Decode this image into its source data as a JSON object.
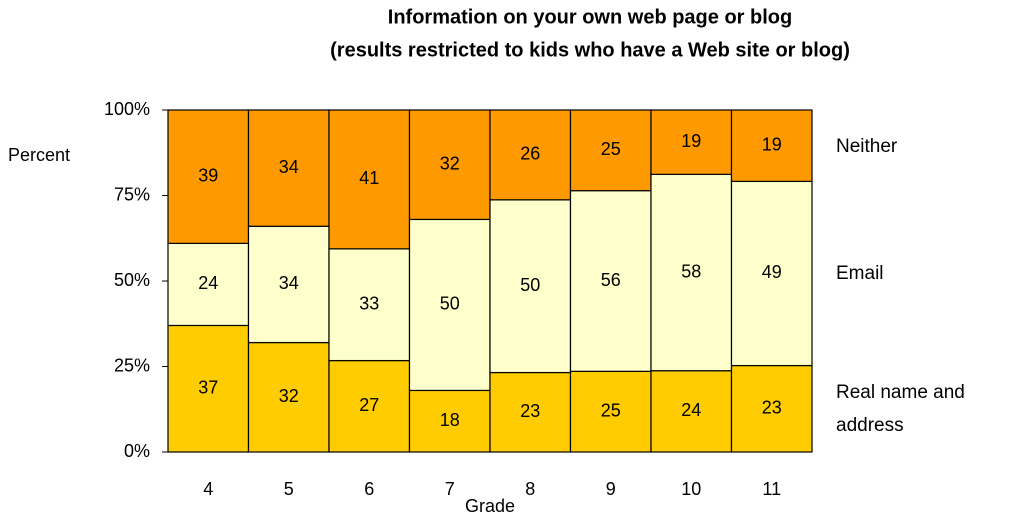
{
  "chart_data": {
    "type": "stacked_bar",
    "stack": "percent",
    "title": "Information on your own web page or blog",
    "subtitle": "(results restricted to kids who have a Web site or blog)",
    "x_label": "Grade",
    "y_label": "Percent",
    "categories": [
      "4",
      "5",
      "6",
      "7",
      "8",
      "9",
      "10",
      "11"
    ],
    "series": [
      {
        "name": "Real name and address",
        "color": "#ffcc00",
        "values": [
          37,
          32,
          27,
          18,
          23,
          25,
          24,
          23
        ]
      },
      {
        "name": "Email",
        "color": "#ffffcc",
        "values": [
          24,
          34,
          33,
          50,
          50,
          56,
          58,
          49
        ]
      },
      {
        "name": "Neither",
        "color": "#ff9900",
        "values": [
          39,
          34,
          41,
          32,
          26,
          25,
          19,
          19
        ]
      }
    ],
    "ylim": [
      0,
      100
    ],
    "yticks": [
      {
        "value": 0,
        "label": "0%"
      },
      {
        "value": 25,
        "label": "25%"
      },
      {
        "value": 50,
        "label": "50%"
      },
      {
        "value": 75,
        "label": "75%"
      },
      {
        "value": 100,
        "label": "100%"
      }
    ]
  }
}
